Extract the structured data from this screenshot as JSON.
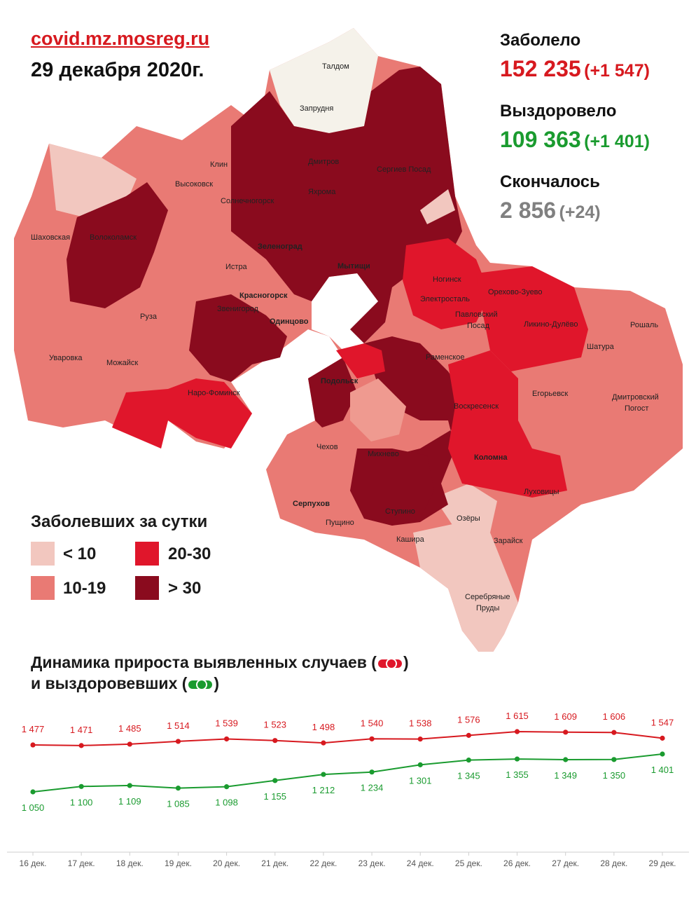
{
  "header": {
    "site": "covid.mz.mosreg.ru",
    "date": "29 декабря 2020г."
  },
  "stats": {
    "infected": {
      "label": "Заболело",
      "value": "152 235",
      "delta": "(+1 547)",
      "color": "#d7191f"
    },
    "recovered": {
      "label": "Выздоровело",
      "value": "109 363",
      "delta": "(+1 401)",
      "color": "#1a9b2f"
    },
    "died": {
      "label": "Скончалось",
      "value": "2 856",
      "delta": "(+24)",
      "color": "#808080"
    }
  },
  "map": {
    "labels": [
      "Талдом",
      "Запрудня",
      "Дмитров",
      "Сергиев Посад",
      "Клин",
      "Высоковск",
      "Солнечногорск",
      "Яхрома",
      "Волоколамск",
      "Шаховская",
      "Зеленоград",
      "Мытищи",
      "Истра",
      "Ногинск",
      "Электросталь",
      "Орехово-Зуево",
      "Красногорск",
      "Звенигород",
      "Одинцово",
      "Павловский Посад",
      "Ликино-Дулёво",
      "Рошаль",
      "Руза",
      "Уваровка",
      "Можайск",
      "Раменское",
      "Шатура",
      "Наро-Фоминск",
      "Подольск",
      "Егорьевск",
      "Воскресенск",
      "Дмитровский Погост",
      "Чехов",
      "Михнево",
      "Коломна",
      "Луховицы",
      "Серпухов",
      "Пущино",
      "Ступино",
      "Озёры",
      "Кашира",
      "Зарайск",
      "Серебряные Пруды"
    ],
    "category_colors": {
      "lt10": "#f2c7bf",
      "c10_19": "#e97a74",
      "c20_30": "#e0162b",
      "gt30": "#8a0b1e"
    }
  },
  "legend": {
    "title": "Заболевших за сутки",
    "items": [
      {
        "label": "< 10",
        "color": "#f2c7bf"
      },
      {
        "label": "20-30",
        "color": "#e0162b"
      },
      {
        "label": "10-19",
        "color": "#e97a74"
      },
      {
        "label": "> 30",
        "color": "#8a0b1e"
      }
    ]
  },
  "dynamics": {
    "title_line1": "Динамика прироста выявленных случаев (",
    "title_line1_end": ")",
    "title_line2": "и выздоровевших (",
    "title_line2_end": ")"
  },
  "chart_data": {
    "type": "line",
    "categories": [
      "16 дек.",
      "17 дек.",
      "18 дек.",
      "19 дек.",
      "20 дек.",
      "21 дек.",
      "22 дек.",
      "23 дек.",
      "24 дек.",
      "25 дек.",
      "26 дек.",
      "27 дек.",
      "28 дек.",
      "29 дек."
    ],
    "series": [
      {
        "color": "#d7191f",
        "values": [
          1477,
          1471,
          1485,
          1514,
          1539,
          1523,
          1498,
          1540,
          1538,
          1576,
          1615,
          1609,
          1606,
          1547
        ],
        "value_labels": [
          "1 477",
          "1 471",
          "1 485",
          "1 514",
          "1 539",
          "1 523",
          "1 498",
          "1 540",
          "1 538",
          "1 576",
          "1 615",
          "1 609",
          "1 606",
          "1 547"
        ]
      },
      {
        "color": "#1a9b2f",
        "values": [
          1050,
          1100,
          1109,
          1085,
          1098,
          1155,
          1212,
          1234,
          1301,
          1345,
          1355,
          1349,
          1350,
          1401
        ],
        "value_labels": [
          "1 050",
          "1 100",
          "1 109",
          "1 085",
          "1 098",
          "1 155",
          "1 212",
          "1 234",
          "1 301",
          "1 345",
          "1 355",
          "1 349",
          "1 350",
          "1 401"
        ]
      }
    ],
    "xlabel": "",
    "ylabel": "",
    "grid": false
  }
}
